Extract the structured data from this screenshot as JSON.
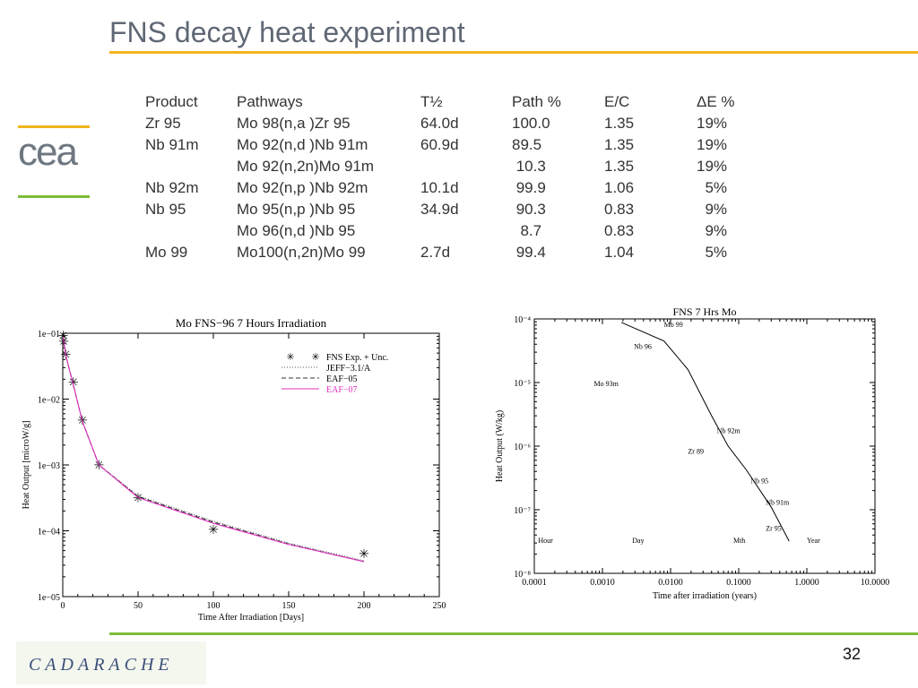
{
  "slide": {
    "title": "FNS decay heat experiment",
    "page_number": "32",
    "colors": {
      "title_rule": "#f2b51d",
      "logo_rule_top": "#f2b51d",
      "logo_rule_bottom": "#7dbd3a",
      "bottom_rule": "#7dbd3a",
      "eaf07": "#e030c0"
    }
  },
  "logos": {
    "cea": "cea",
    "cadarache": "CADARACHE"
  },
  "table": {
    "headers": [
      "Product",
      "Pathways",
      "T½",
      "Path %",
      "E/C",
      "ΔE %"
    ],
    "rows": [
      [
        "Zr 95",
        "Mo 98(n,a )Zr 95",
        "64.0d",
        "100.0",
        "1.35",
        "19%"
      ],
      [
        "Nb 91m",
        "Mo 92(n,d )Nb 91m",
        "60.9d",
        "89.5",
        "1.35",
        "19%"
      ],
      [
        "",
        "Mo 92(n,2n)Mo 91m",
        "",
        " 10.3",
        "1.35",
        "19%"
      ],
      [
        "Nb 92m",
        "Mo 92(n,p )Nb 92m",
        "10.1d",
        " 99.9",
        "1.06",
        "  5%"
      ],
      [
        "Nb 95",
        "Mo 95(n,p )Nb 95",
        "34.9d",
        " 90.3",
        "0.83",
        "  9%"
      ],
      [
        "",
        "Mo 96(n,d )Nb 95",
        "",
        "  8.7",
        "0.83",
        "  9%"
      ],
      [
        "Mo 99",
        "Mo100(n,2n)Mo 99",
        "2.7d",
        " 99.4",
        "1.04",
        "  5%"
      ]
    ]
  },
  "chart_data": [
    {
      "type": "line",
      "title": "Mo FNS−96 7 Hours Irradiation",
      "xlabel": "Time After Irradiation [Days]",
      "ylabel": "Heat Output [microW/g]",
      "xlim": [
        0,
        250
      ],
      "ylim": [
        1e-05,
        0.1
      ],
      "yscale": "log",
      "xticks": [
        "0",
        "50",
        "100",
        "150",
        "200",
        "250"
      ],
      "yticks": [
        "1e−05",
        "1e−04",
        "1e−03",
        "1e−02",
        "1e−01"
      ],
      "legend_position": "top-right",
      "series": [
        {
          "name": "FNS Exp. + Unc.",
          "style": "markers",
          "x": [
            0.3,
            0.7,
            2,
            7,
            13,
            24,
            50,
            100,
            200
          ],
          "y": [
            0.092,
            0.075,
            0.048,
            0.018,
            0.0048,
            0.001,
            0.00032,
            0.000105,
            4.5e-05
          ]
        },
        {
          "name": "JEFF−3.1/A",
          "style": "dotted",
          "x": [
            0.3,
            2,
            7,
            13,
            24,
            50,
            100,
            150,
            200
          ],
          "y": [
            0.088,
            0.046,
            0.0165,
            0.0046,
            0.001,
            0.00034,
            0.00014,
            6.5e-05,
            3.5e-05
          ]
        },
        {
          "name": "EAF−05",
          "style": "dashed",
          "x": [
            0.3,
            2,
            7,
            13,
            24,
            50,
            100,
            150,
            200
          ],
          "y": [
            0.088,
            0.046,
            0.0165,
            0.0046,
            0.001,
            0.00033,
            0.000135,
            6.3e-05,
            3.4e-05
          ]
        },
        {
          "name": "EAF−07",
          "style": "solid",
          "color": "#e030c0",
          "x": [
            0.3,
            2,
            7,
            13,
            24,
            50,
            100,
            150,
            200
          ],
          "y": [
            0.088,
            0.046,
            0.0165,
            0.0046,
            0.001,
            0.00032,
            0.00013,
            6.2e-05,
            3.4e-05
          ]
        }
      ]
    },
    {
      "type": "line",
      "title": "FNS 7 Hrs Mo",
      "xlabel": "Time after irradiation (years)",
      "ylabel": "Heat Output (W/kg)",
      "xscale": "log",
      "yscale": "log",
      "xlim": [
        0.0001,
        10
      ],
      "ylim": [
        1e-08,
        0.0001
      ],
      "xticks": [
        "0.0001",
        "0.0010",
        "0.0100",
        "0.1000",
        "1.0000",
        "10.0000"
      ],
      "yticks": [
        "10⁻⁸",
        "10⁻⁷",
        "10⁻⁶",
        "10⁻⁵",
        "10⁻⁴"
      ],
      "series": [
        {
          "x": [
            0.0019,
            0.008,
            0.018,
            0.04,
            0.07,
            0.13,
            0.3,
            0.55
          ],
          "y": [
            8.8e-05,
            4.5e-05,
            1.6e-05,
            3e-06,
            1e-06,
            4.2e-07,
            1.1e-07,
            3.2e-08
          ]
        }
      ],
      "annotations": [
        {
          "text": "Mo 99",
          "x": 0.008,
          "y": 7.5e-05
        },
        {
          "text": "Nb 96",
          "x": 0.0029,
          "y": 3.4e-05
        },
        {
          "text": "Mo 93m",
          "x": 0.00075,
          "y": 8.8e-06
        },
        {
          "text": "Nb 92m",
          "x": 0.048,
          "y": 1.6e-06
        },
        {
          "text": "Zr 89",
          "x": 0.018,
          "y": 7.6e-07
        },
        {
          "text": "Nb 95",
          "x": 0.15,
          "y": 2.6e-07
        },
        {
          "text": "Nb 91m",
          "x": 0.25,
          "y": 1.2e-07
        },
        {
          "text": "Zr 95",
          "x": 0.25,
          "y": 4.7e-08
        },
        {
          "text": "Hour",
          "x": 0.000114,
          "y": 3e-08
        },
        {
          "text": "Day",
          "x": 0.00274,
          "y": 3e-08
        },
        {
          "text": "Mth",
          "x": 0.0833,
          "y": 3e-08
        },
        {
          "text": "Year",
          "x": 1.0,
          "y": 3e-08
        }
      ]
    }
  ]
}
